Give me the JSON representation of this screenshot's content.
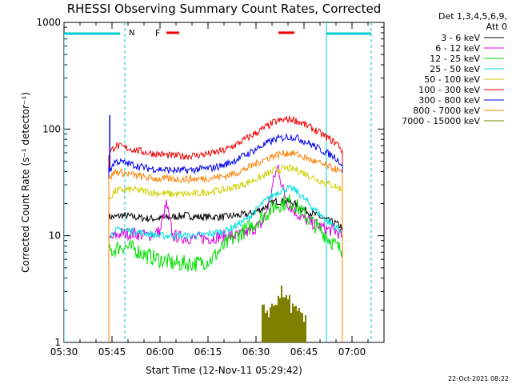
{
  "chart_data": {
    "type": "line",
    "title": "RHESSI Observing Summary Count Rates, Corrected",
    "xlabel": "Start Time (12-Nov-11 05:29:42)",
    "ylabel": "Corrected Count Rate (s⁻¹ detector⁻¹)",
    "xlim_minutes_after_0530": [
      0,
      100
    ],
    "ylim": [
      1,
      1000
    ],
    "y_scale": "log",
    "x_ticks": [
      "05:30",
      "05:45",
      "06:00",
      "06:15",
      "06:30",
      "06:45",
      "07:00"
    ],
    "y_ticks": [
      "1",
      "10",
      "100",
      "1000"
    ],
    "legend_header": [
      "Det 1,3,4,5,6,9,",
      "Att 0"
    ],
    "legend_position": "right",
    "series": [
      {
        "name": "3 - 6 keV",
        "color": "#000000",
        "x": [
          14,
          16,
          18,
          22,
          26,
          30,
          34,
          38,
          42,
          46,
          50,
          54,
          58,
          62,
          66,
          70,
          72,
          74,
          78,
          82,
          85,
          86,
          87
        ],
        "y": [
          15,
          15,
          15.5,
          15,
          14.5,
          14.5,
          15,
          15.5,
          15,
          15,
          15,
          15.5,
          16,
          18,
          21,
          21,
          20,
          18,
          16,
          14,
          13,
          12.5,
          12
        ]
      },
      {
        "name": "6 - 12 keV",
        "color": "#e000e0",
        "x": [
          14,
          16,
          18,
          22,
          26,
          30,
          32,
          34,
          38,
          42,
          46,
          50,
          54,
          58,
          62,
          64,
          66,
          67,
          68,
          70,
          72,
          74,
          78,
          82,
          85,
          86,
          87
        ],
        "y": [
          9,
          10,
          10.5,
          10.5,
          10,
          11,
          20,
          10,
          9.5,
          9.5,
          9.5,
          10,
          10,
          11,
          13,
          20,
          38,
          45,
          30,
          20,
          17,
          15,
          13,
          11.5,
          11,
          10.5,
          10
        ]
      },
      {
        "name": "12 - 25 keV",
        "color": "#00e000",
        "x": [
          14,
          16,
          18,
          22,
          26,
          30,
          34,
          38,
          42,
          46,
          50,
          54,
          58,
          62,
          66,
          70,
          72,
          74,
          78,
          82,
          85,
          86,
          87
        ],
        "y": [
          7,
          7.5,
          8,
          7.5,
          6.5,
          6,
          5.5,
          5.5,
          5.5,
          6,
          8,
          10,
          12,
          15,
          19,
          21,
          20,
          17,
          13,
          10,
          8,
          7.5,
          7.5
        ]
      },
      {
        "name": "25 - 50 keV",
        "color": "#00e0e0",
        "x": [
          14,
          16,
          18,
          22,
          26,
          30,
          34,
          38,
          42,
          46,
          50,
          54,
          58,
          62,
          66,
          70,
          72,
          74,
          78,
          82,
          85,
          86,
          87
        ],
        "y": [
          10,
          11,
          11.5,
          11,
          10.5,
          10,
          10,
          10,
          10,
          10.5,
          11,
          12.5,
          15,
          20,
          25,
          28,
          27,
          24,
          18,
          14,
          12,
          11.5,
          11
        ]
      },
      {
        "name": "50 - 100 keV",
        "color": "#d0d000",
        "x": [
          14,
          16,
          18,
          22,
          26,
          30,
          34,
          38,
          42,
          46,
          50,
          54,
          58,
          62,
          66,
          70,
          72,
          74,
          78,
          82,
          85,
          86,
          87
        ],
        "y": [
          22,
          26,
          27,
          27,
          26,
          25,
          24.5,
          24.5,
          25,
          26,
          27,
          29,
          32,
          36,
          41,
          43,
          42,
          40,
          35,
          31,
          29,
          28,
          27
        ]
      },
      {
        "name": "100 - 300 keV",
        "color": "#ee0000",
        "x": [
          14,
          16,
          18,
          22,
          26,
          30,
          34,
          38,
          42,
          46,
          50,
          54,
          58,
          62,
          66,
          70,
          72,
          74,
          78,
          82,
          85,
          86,
          87
        ],
        "y": [
          58,
          70,
          68,
          64,
          60,
          58,
          56,
          56,
          57,
          59,
          63,
          72,
          85,
          100,
          117,
          124,
          122,
          115,
          100,
          84,
          74,
          70,
          62
        ]
      },
      {
        "name": "300 - 800 keV",
        "color": "#0000ee",
        "x": [
          14,
          16,
          18,
          22,
          26,
          30,
          34,
          38,
          42,
          46,
          50,
          54,
          58,
          62,
          66,
          70,
          72,
          74,
          78,
          82,
          85,
          86,
          87
        ],
        "y": [
          40,
          50,
          49,
          46,
          43,
          42,
          41,
          41,
          42,
          43,
          46,
          52,
          60,
          70,
          80,
          85,
          84,
          80,
          70,
          60,
          54,
          50,
          46
        ]
      },
      {
        "name": "800 - 7000 keV",
        "color": "#ff8000",
        "x": [
          14,
          16,
          18,
          22,
          26,
          30,
          34,
          38,
          42,
          46,
          50,
          54,
          58,
          62,
          66,
          70,
          72,
          74,
          78,
          82,
          85,
          86,
          87
        ],
        "y": [
          34,
          40,
          39,
          37,
          35,
          34,
          34,
          34,
          34,
          35,
          36,
          39,
          44,
          51,
          57,
          60,
          59,
          56,
          50,
          45,
          42,
          40,
          38
        ]
      },
      {
        "name": "7000 - 15000 keV",
        "color": "#808000",
        "x": [
          62,
          64,
          66,
          67,
          68,
          69,
          70,
          71,
          72,
          74,
          76
        ],
        "y": [
          2,
          2,
          2.3,
          2.7,
          3,
          2.5,
          2.8,
          2.2,
          2,
          1.8,
          1.5
        ]
      }
    ],
    "annotations": [
      {
        "label": "N",
        "color": "#00cccc",
        "x_range": [
          19,
          82
        ]
      },
      {
        "label": "F",
        "color": "#ee0000",
        "bars_x": [
          [
            32,
            36
          ],
          [
            67,
            72
          ]
        ],
        "y": 800
      }
    ]
  },
  "timestamp": "22-Oct-2021 08:22"
}
